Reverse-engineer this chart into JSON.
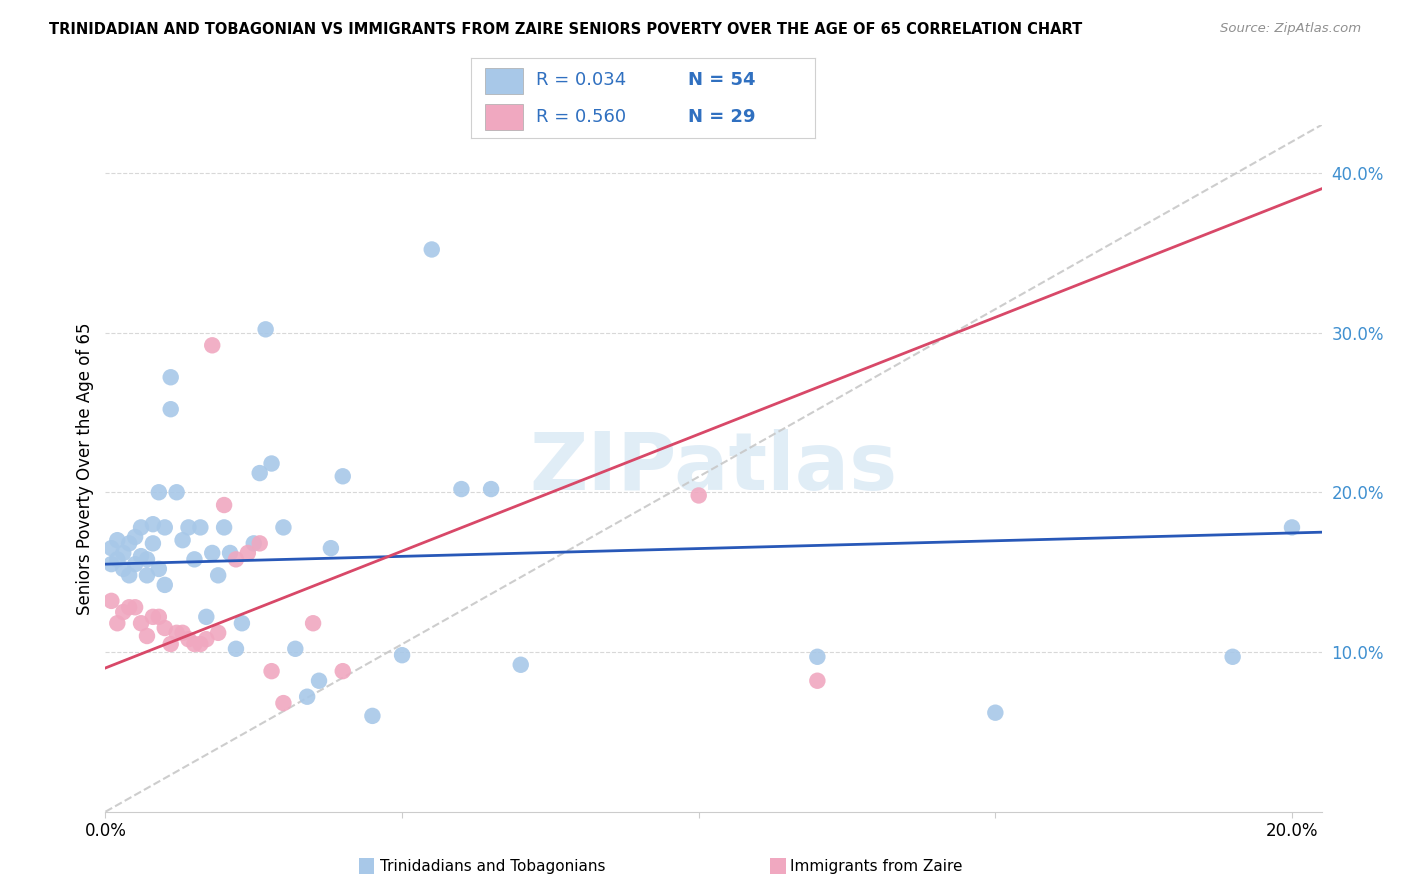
{
  "title": "TRINIDADIAN AND TOBAGONIAN VS IMMIGRANTS FROM ZAIRE SENIORS POVERTY OVER THE AGE OF 65 CORRELATION CHART",
  "source": "Source: ZipAtlas.com",
  "ylabel": "Seniors Poverty Over the Age of 65",
  "xlim": [
    0.0,
    0.205
  ],
  "ylim": [
    0.0,
    0.43
  ],
  "ytick_vals": [
    0.1,
    0.2,
    0.3,
    0.4
  ],
  "ytick_labels": [
    "10.0%",
    "20.0%",
    "30.0%",
    "40.0%"
  ],
  "xtick_vals": [
    0.0,
    0.05,
    0.1,
    0.15,
    0.2
  ],
  "xtick_labels": [
    "0.0%",
    "",
    "",
    "",
    "20.0%"
  ],
  "blue_R": "R = 0.034",
  "blue_N": "N = 54",
  "pink_R": "R = 0.560",
  "pink_N": "N = 29",
  "blue_color": "#a8c8e8",
  "pink_color": "#f0a8c0",
  "blue_line_color": "#2858b8",
  "pink_line_color": "#d84868",
  "diag_line_color": "#c8c8c8",
  "watermark_text": "ZIPatlas",
  "legend_label_blue": "Trinidadians and Tobagonians",
  "legend_label_pink": "Immigrants from Zaire",
  "blue_scatter_x": [
    0.001,
    0.001,
    0.002,
    0.002,
    0.003,
    0.003,
    0.004,
    0.004,
    0.005,
    0.005,
    0.006,
    0.006,
    0.007,
    0.007,
    0.008,
    0.008,
    0.009,
    0.009,
    0.01,
    0.01,
    0.011,
    0.011,
    0.012,
    0.013,
    0.014,
    0.015,
    0.016,
    0.017,
    0.018,
    0.019,
    0.02,
    0.021,
    0.022,
    0.023,
    0.025,
    0.026,
    0.027,
    0.028,
    0.03,
    0.032,
    0.034,
    0.036,
    0.038,
    0.04,
    0.045,
    0.05,
    0.055,
    0.06,
    0.065,
    0.07,
    0.12,
    0.15,
    0.19,
    0.2
  ],
  "blue_scatter_y": [
    0.155,
    0.165,
    0.158,
    0.17,
    0.152,
    0.162,
    0.148,
    0.168,
    0.155,
    0.172,
    0.16,
    0.178,
    0.148,
    0.158,
    0.168,
    0.18,
    0.152,
    0.2,
    0.142,
    0.178,
    0.252,
    0.272,
    0.2,
    0.17,
    0.178,
    0.158,
    0.178,
    0.122,
    0.162,
    0.148,
    0.178,
    0.162,
    0.102,
    0.118,
    0.168,
    0.212,
    0.302,
    0.218,
    0.178,
    0.102,
    0.072,
    0.082,
    0.165,
    0.21,
    0.06,
    0.098,
    0.352,
    0.202,
    0.202,
    0.092,
    0.097,
    0.062,
    0.097,
    0.178
  ],
  "pink_scatter_x": [
    0.001,
    0.002,
    0.003,
    0.004,
    0.005,
    0.006,
    0.007,
    0.008,
    0.009,
    0.01,
    0.011,
    0.012,
    0.013,
    0.014,
    0.015,
    0.016,
    0.017,
    0.018,
    0.019,
    0.02,
    0.022,
    0.024,
    0.026,
    0.028,
    0.03,
    0.035,
    0.04,
    0.1,
    0.12
  ],
  "pink_scatter_y": [
    0.132,
    0.118,
    0.125,
    0.128,
    0.128,
    0.118,
    0.11,
    0.122,
    0.122,
    0.115,
    0.105,
    0.112,
    0.112,
    0.108,
    0.105,
    0.105,
    0.108,
    0.292,
    0.112,
    0.192,
    0.158,
    0.162,
    0.168,
    0.088,
    0.068,
    0.118,
    0.088,
    0.198,
    0.082
  ],
  "blue_line_x": [
    0.0,
    0.205
  ],
  "blue_line_y": [
    0.155,
    0.175
  ],
  "pink_line_x": [
    0.0,
    0.205
  ],
  "pink_line_y": [
    0.09,
    0.39
  ]
}
